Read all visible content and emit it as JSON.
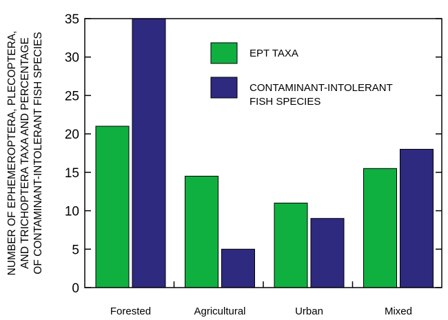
{
  "chart_data": {
    "type": "bar",
    "categories": [
      "Forested",
      "Agricultural",
      "Urban",
      "Mixed"
    ],
    "series": [
      {
        "name": "EPT TAXA",
        "color": "#10b040",
        "values": [
          21,
          14.5,
          11,
          15.5
        ]
      },
      {
        "name": "CONTAMINANT-INTOLERANT FISH SPECIES",
        "name_lines": [
          "CONTAMINANT-INTOLERANT",
          "FISH SPECIES"
        ],
        "color": "#2e2a80",
        "values": [
          35,
          5,
          9,
          18
        ]
      }
    ],
    "ylabel_lines": [
      "NUMBER OF EPHEMEROPTERA, PLECOPTERA,",
      "AND TRICHOPTERA TAXA AND PERCENTAGE",
      "OF CONTAMINANT-INTOLERANT FISH SPECIES"
    ],
    "ylim": [
      0,
      35
    ],
    "yticks": [
      0,
      5,
      10,
      15,
      20,
      25,
      30,
      35
    ],
    "legend_position": "top-right",
    "grid": false
  }
}
